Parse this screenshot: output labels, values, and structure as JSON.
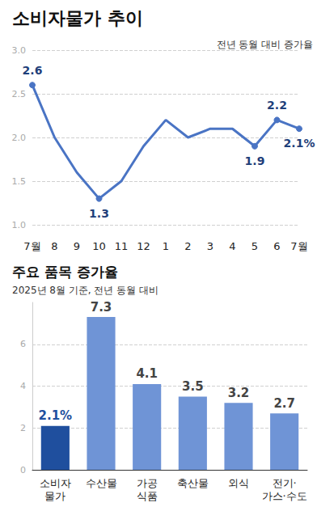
{
  "chart_data": [
    {
      "type": "line",
      "title": "소비자물가 추이",
      "subtitle": "전년 동월 대비 증가율",
      "categories": [
        "7월",
        "8",
        "9",
        "10",
        "11",
        "12",
        "1",
        "2",
        "3",
        "4",
        "5",
        "6",
        "7월"
      ],
      "values": [
        2.6,
        2.0,
        1.6,
        1.3,
        1.5,
        1.9,
        2.2,
        2.0,
        2.1,
        2.1,
        1.9,
        2.2,
        2.1
      ],
      "value_labels": [
        "2.6",
        null,
        null,
        "1.3",
        null,
        null,
        null,
        null,
        null,
        null,
        "1.9",
        "2.2",
        "2.1%"
      ],
      "color": "#4a74c4",
      "marker": "circle",
      "line_style": "solid",
      "ylim": [
        1.0,
        3.0
      ],
      "yticks": [
        {
          "value": 1.0,
          "label": "1.0"
        },
        {
          "value": 1.5,
          "label": "1.5"
        },
        {
          "value": 2.0,
          "label": "2.0"
        },
        {
          "value": 2.5,
          "label": "2.5"
        },
        {
          "value": 3.0,
          "label": "3.0"
        }
      ],
      "grid": true,
      "data_labels": true
    },
    {
      "type": "bar",
      "title": "주요 품목 증가율",
      "subtitle": "2025년 8월 기준, 전년 동월 대비",
      "categories": [
        "소비자\n물가",
        "수산물",
        "가공\n식품",
        "축산물",
        "외식",
        "전기·\n가스·수도"
      ],
      "values": [
        2.1,
        7.3,
        4.1,
        3.5,
        3.2,
        2.7
      ],
      "value_labels": [
        "2.1%",
        "7.3",
        "4.1",
        "3.5",
        "3.2",
        "2.7"
      ],
      "colors": [
        "#1f4f9e",
        "#6f94d6",
        "#6f94d6",
        "#6f94d6",
        "#6f94d6",
        "#6f94d6"
      ],
      "ylim": [
        0,
        8
      ],
      "yticks": [
        0,
        2,
        4,
        6
      ],
      "grid": true,
      "data_labels": true
    }
  ]
}
